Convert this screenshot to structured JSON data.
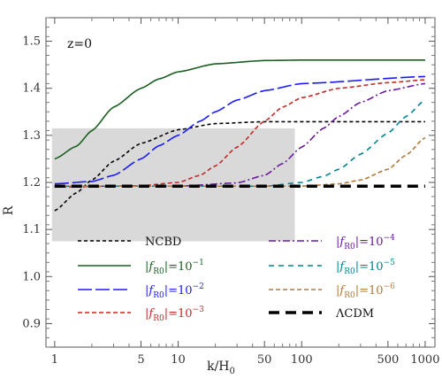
{
  "chart_data": {
    "type": "line",
    "annotation": "z=0",
    "xlabel": "k/H",
    "xlabel_sub": "0",
    "ylabel": "R",
    "x_scale": "log",
    "xlim": [
      0.85,
      1200
    ],
    "ylim": [
      0.85,
      1.55
    ],
    "x_ticks": [
      {
        "value": 1,
        "label": "1"
      },
      {
        "value": 5,
        "label": "5"
      },
      {
        "value": 10,
        "label": "10"
      },
      {
        "value": 50,
        "label": "50"
      },
      {
        "value": 100,
        "label": "100"
      },
      {
        "value": 500,
        "label": "500"
      },
      {
        "value": 1000,
        "label": "1000"
      }
    ],
    "y_ticks": [
      {
        "value": 0.9,
        "label": "0.9"
      },
      {
        "value": 1.0,
        "label": "1.0"
      },
      {
        "value": 1.1,
        "label": "1.1"
      },
      {
        "value": 1.2,
        "label": "1.2"
      },
      {
        "value": 1.3,
        "label": "1.3"
      },
      {
        "value": 1.4,
        "label": "1.4"
      },
      {
        "value": 1.5,
        "label": "1.5"
      }
    ],
    "shaded_region": {
      "x": [
        0.95,
        88
      ],
      "y": [
        1.075,
        1.315
      ],
      "color": "#d9d9d9"
    },
    "grid": false,
    "legend_position": "bottom, two columns",
    "series": [
      {
        "name": "NCBD",
        "label_parts": [
          "NCBD"
        ],
        "color": "#000000",
        "dash": "4,3",
        "width": 1.6,
        "x": [
          1,
          1.5,
          2,
          3,
          5,
          10,
          20,
          50,
          100,
          1000
        ],
        "y": [
          1.14,
          1.178,
          1.205,
          1.245,
          1.283,
          1.312,
          1.325,
          1.329,
          1.329,
          1.329
        ]
      },
      {
        "name": "|fR0|=10^-1",
        "label_parts": [
          "|",
          "f",
          "R0",
          "|=10",
          "−1"
        ],
        "color": "#1b5e20",
        "dash": "",
        "width": 1.6,
        "x": [
          1,
          1.5,
          2,
          3,
          5,
          7,
          10,
          20,
          50,
          100,
          1000
        ],
        "y": [
          1.25,
          1.277,
          1.31,
          1.36,
          1.4,
          1.42,
          1.435,
          1.452,
          1.459,
          1.46,
          1.46
        ]
      },
      {
        "name": "|fR0|=10^-2",
        "label_parts": [
          "|",
          "f",
          "R0",
          "|=10",
          "−2"
        ],
        "color": "#1a1aff",
        "dash": "16,4",
        "width": 1.6,
        "x": [
          1,
          2,
          3,
          5,
          7,
          10,
          15,
          20,
          30,
          50,
          100,
          1000
        ],
        "y": [
          1.197,
          1.202,
          1.215,
          1.25,
          1.278,
          1.3,
          1.33,
          1.35,
          1.375,
          1.395,
          1.41,
          1.425
        ]
      },
      {
        "name": "|fR0|=10^-3",
        "label_parts": [
          "|",
          "f",
          "R0",
          "|=10",
          "−3"
        ],
        "color": "#c62828",
        "dash": "5,3",
        "width": 1.6,
        "x": [
          1,
          5,
          10,
          15,
          20,
          30,
          50,
          70,
          100,
          200,
          500,
          1000
        ],
        "y": [
          1.19,
          1.193,
          1.2,
          1.215,
          1.235,
          1.275,
          1.33,
          1.36,
          1.38,
          1.4,
          1.412,
          1.418
        ]
      },
      {
        "name": "|fR0|=10^-4",
        "label_parts": [
          "|",
          "f",
          "R0",
          "|=10",
          "−4"
        ],
        "color": "#6a1b9a",
        "dash": "8,3,2,3",
        "width": 1.6,
        "x": [
          1,
          10,
          30,
          50,
          70,
          100,
          150,
          200,
          300,
          500,
          1000
        ],
        "y": [
          1.192,
          1.192,
          1.199,
          1.215,
          1.24,
          1.275,
          1.315,
          1.34,
          1.37,
          1.395,
          1.41
        ]
      },
      {
        "name": "|fR0|=10^-5",
        "label_parts": [
          "|",
          "f",
          "R0",
          "|=10",
          "−5"
        ],
        "color": "#00838f",
        "dash": "6,5",
        "width": 1.6,
        "x": [
          1,
          50,
          100,
          150,
          200,
          300,
          500,
          700,
          1000
        ],
        "y": [
          1.192,
          1.192,
          1.2,
          1.213,
          1.228,
          1.26,
          1.305,
          1.34,
          1.375
        ]
      },
      {
        "name": "|fR0|=10^-6",
        "label_parts": [
          "|",
          "f",
          "R0",
          "|=10",
          "−6"
        ],
        "color": "#b07a3c",
        "dash": "5,3",
        "width": 1.6,
        "x": [
          1,
          100,
          200,
          300,
          500,
          700,
          1000
        ],
        "y": [
          1.192,
          1.192,
          1.197,
          1.205,
          1.228,
          1.258,
          1.295
        ]
      },
      {
        "name": "ΛCDM",
        "label_parts": [
          "ΛCDM"
        ],
        "color": "#000000",
        "dash": "12,7",
        "width": 3.4,
        "x": [
          1,
          1000
        ],
        "y": [
          1.192,
          1.192
        ]
      }
    ],
    "legend_order": [
      0,
      4,
      1,
      5,
      2,
      6,
      3,
      7
    ]
  }
}
